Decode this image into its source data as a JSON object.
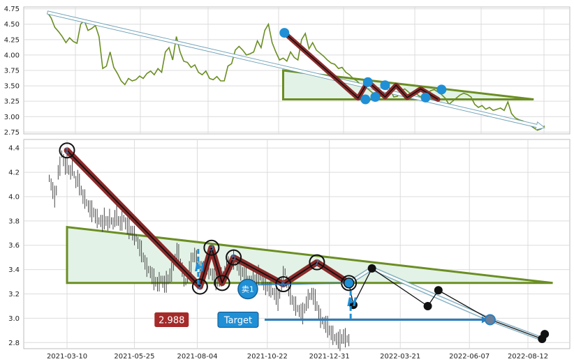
{
  "chart_data": [
    {
      "type": "line",
      "panel": "top",
      "title": "",
      "xlabel": "",
      "ylabel": "",
      "ylim": [
        2.72,
        4.78
      ],
      "y_ticks": [
        "2.75",
        "3.00",
        "3.25",
        "3.50",
        "3.75",
        "4.00",
        "4.25",
        "4.50",
        "4.75"
      ],
      "grid": true,
      "colors": {
        "price": "#6b8e23",
        "pattern": "#8b2a2a",
        "marker": "#1f8fd6",
        "triangle": "#6b8e23",
        "fill": "#e3f2e6",
        "trend": "#6a9fb5"
      },
      "series": [
        {
          "values": [
            [
              0,
              4.69
            ],
            [
              3,
              4.6
            ],
            [
              6,
              4.45
            ],
            [
              9,
              4.38
            ],
            [
              12,
              4.3
            ],
            [
              15,
              4.2
            ],
            [
              18,
              4.28
            ],
            [
              21,
              4.22
            ],
            [
              24,
              4.19
            ],
            [
              27,
              4.5
            ],
            [
              30,
              4.56
            ],
            [
              33,
              4.4
            ],
            [
              36,
              4.43
            ],
            [
              39,
              4.48
            ],
            [
              42,
              4.3
            ],
            [
              45,
              3.78
            ],
            [
              48,
              3.82
            ],
            [
              51,
              4.05
            ],
            [
              54,
              3.8
            ],
            [
              57,
              3.7
            ],
            [
              60,
              3.58
            ],
            [
              63,
              3.52
            ],
            [
              66,
              3.62
            ],
            [
              69,
              3.58
            ],
            [
              72,
              3.6
            ],
            [
              75,
              3.66
            ],
            [
              78,
              3.62
            ],
            [
              81,
              3.7
            ],
            [
              84,
              3.74
            ],
            [
              87,
              3.68
            ],
            [
              90,
              3.78
            ],
            [
              93,
              3.72
            ],
            [
              96,
              4.05
            ],
            [
              99,
              4.12
            ],
            [
              102,
              3.92
            ],
            [
              105,
              4.3
            ],
            [
              108,
              4.05
            ],
            [
              111,
              3.9
            ],
            [
              114,
              3.88
            ],
            [
              117,
              3.8
            ],
            [
              120,
              3.84
            ],
            [
              123,
              3.72
            ],
            [
              126,
              3.68
            ],
            [
              129,
              3.74
            ],
            [
              132,
              3.62
            ],
            [
              135,
              3.6
            ],
            [
              138,
              3.65
            ],
            [
              141,
              3.58
            ],
            [
              144,
              3.58
            ],
            [
              147,
              3.82
            ],
            [
              150,
              3.86
            ],
            [
              153,
              4.08
            ],
            [
              156,
              4.14
            ],
            [
              159,
              4.08
            ],
            [
              162,
              4.0
            ],
            [
              165,
              4.02
            ],
            [
              168,
              4.05
            ],
            [
              171,
              4.23
            ],
            [
              174,
              4.12
            ],
            [
              177,
              4.4
            ],
            [
              180,
              4.5
            ],
            [
              183,
              4.2
            ],
            [
              186,
              4.05
            ],
            [
              189,
              3.92
            ],
            [
              192,
              3.95
            ],
            [
              195,
              3.9
            ],
            [
              198,
              4.05
            ],
            [
              201,
              3.96
            ],
            [
              204,
              3.92
            ],
            [
              207,
              4.25
            ],
            [
              210,
              4.35
            ],
            [
              213,
              4.1
            ],
            [
              216,
              4.2
            ],
            [
              219,
              4.08
            ],
            [
              222,
              4.03
            ],
            [
              225,
              3.98
            ],
            [
              228,
              3.92
            ],
            [
              231,
              3.87
            ],
            [
              234,
              3.85
            ],
            [
              237,
              3.78
            ],
            [
              240,
              3.8
            ],
            [
              243,
              3.72
            ],
            [
              246,
              3.68
            ],
            [
              249,
              3.62
            ],
            [
              252,
              3.58
            ],
            [
              255,
              3.52
            ],
            [
              258,
              3.5
            ],
            [
              261,
              3.45
            ],
            [
              264,
              3.4
            ],
            [
              267,
              3.35
            ],
            [
              270,
              3.3
            ],
            [
              273,
              3.38
            ],
            [
              276,
              3.55
            ],
            [
              279,
              3.45
            ],
            [
              282,
              3.32
            ],
            [
              285,
              3.33
            ],
            [
              288,
              3.42
            ],
            [
              291,
              3.45
            ],
            [
              294,
              3.4
            ],
            [
              297,
              3.35
            ],
            [
              300,
              3.38
            ],
            [
              303,
              3.33
            ],
            [
              306,
              3.32
            ],
            [
              309,
              3.36
            ],
            [
              312,
              3.42
            ],
            [
              315,
              3.44
            ],
            [
              318,
              3.4
            ],
            [
              321,
              3.36
            ],
            [
              324,
              3.3
            ],
            [
              327,
              3.2
            ],
            [
              330,
              3.25
            ],
            [
              333,
              3.3
            ],
            [
              336,
              3.35
            ],
            [
              339,
              3.38
            ],
            [
              342,
              3.36
            ],
            [
              345,
              3.32
            ],
            [
              348,
              3.2
            ],
            [
              351,
              3.15
            ],
            [
              354,
              3.18
            ],
            [
              357,
              3.12
            ],
            [
              360,
              3.15
            ],
            [
              363,
              3.1
            ],
            [
              366,
              3.12
            ],
            [
              369,
              3.14
            ],
            [
              372,
              3.1
            ],
            [
              375,
              3.24
            ],
            [
              378,
              3.05
            ],
            [
              381,
              2.98
            ],
            [
              384,
              2.95
            ],
            [
              387,
              2.93
            ],
            [
              390,
              2.9
            ],
            [
              393,
              2.86
            ],
            [
              396,
              2.82
            ],
            [
              399,
              2.78
            ],
            [
              402,
              2.8
            ],
            [
              405,
              2.85
            ]
          ]
        }
      ],
      "pattern_points": [
        [
          193,
          4.36
        ],
        [
          253,
          3.3
        ],
        [
          261,
          3.57
        ],
        [
          275,
          3.32
        ],
        [
          284,
          3.51
        ],
        [
          293,
          3.31
        ],
        [
          304,
          3.45
        ],
        [
          318,
          3.28
        ]
      ],
      "triangle": {
        "x0": 192,
        "x1": 396,
        "top": 3.75,
        "bottom": 3.28
      },
      "trend_arrow": [
        [
          0,
          4.69
        ],
        [
          405,
          2.82
        ]
      ],
      "marker_points": [
        [
          193,
          4.36
        ],
        [
          261,
          3.56
        ],
        [
          259,
          3.28
        ],
        [
          267,
          3.32
        ],
        [
          275,
          3.51
        ],
        [
          308,
          3.31
        ],
        [
          321,
          3.44
        ]
      ]
    },
    {
      "type": "bar",
      "panel": "bottom",
      "title": "",
      "xlabel": "",
      "ylabel": "",
      "ylim": [
        2.75,
        4.47
      ],
      "y_ticks": [
        "2.8",
        "3.0",
        "3.2",
        "3.4",
        "3.6",
        "3.8",
        "4.0",
        "4.2",
        "4.4"
      ],
      "x_ticks": [
        "2021-03-10",
        "2021-05-25",
        "2021-08-04",
        "2021-10-22",
        "2021-12-31",
        "2022-03-21",
        "2022-06-07",
        "2022-08-12"
      ],
      "x_tick_days": [
        0,
        76,
        147,
        226,
        296,
        376,
        454,
        520
      ],
      "grid": true,
      "colors": {
        "pattern": "#8b2a2a",
        "circle": "#111111",
        "triangle": "#6b8e23",
        "fill": "#e3f2e6",
        "h": "#1f8fd6",
        "target_line": "#2a7fbf",
        "price_badge": "#a52a2a",
        "target_badge": "#1f8fd6",
        "sell": "#1f8fd6",
        "forecast": "#111111",
        "forecast_band": "#6a9fb5"
      },
      "day_range": [
        -22,
        568
      ],
      "price_series": {
        "start_day": -20,
        "step_days": 2,
        "values": [
          4.15,
          4.1,
          4.05,
          4.0,
          4.05,
          4.2,
          4.25,
          4.35,
          4.3,
          4.25,
          4.28,
          4.22,
          4.2,
          4.25,
          4.18,
          4.12,
          4.15,
          4.1,
          4.05,
          4.0,
          3.98,
          3.95,
          3.92,
          3.9,
          3.88,
          3.87,
          3.84,
          3.82,
          3.8,
          3.8,
          3.78,
          3.82,
          3.8,
          3.78,
          3.82,
          3.8,
          3.78,
          3.82,
          3.85,
          3.8,
          3.78,
          3.8,
          3.82,
          3.78,
          3.76,
          3.74,
          3.72,
          3.7,
          3.68,
          3.66,
          3.62,
          3.58,
          3.55,
          3.5,
          3.46,
          3.42,
          3.4,
          3.38,
          3.35,
          3.32,
          3.3,
          3.28,
          3.3,
          3.32,
          3.3,
          3.28,
          3.3,
          3.32,
          3.35,
          3.38,
          3.42,
          3.48,
          3.55,
          3.52,
          3.45,
          3.4,
          3.34,
          3.3,
          3.34,
          3.4,
          3.45,
          3.5,
          3.52,
          3.48,
          3.44,
          3.42,
          3.4,
          3.38,
          3.4,
          3.42,
          3.4,
          3.38,
          3.36,
          3.34,
          3.32,
          3.3,
          3.32,
          3.34,
          3.36,
          3.38,
          3.4,
          3.42,
          3.44,
          3.46,
          3.48,
          3.46,
          3.44,
          3.42,
          3.4,
          3.38,
          3.36,
          3.34,
          3.32,
          3.3,
          3.28,
          3.3,
          3.32,
          3.34,
          3.36,
          3.34,
          3.32,
          3.3,
          3.28,
          3.26,
          3.24,
          3.25,
          3.22,
          3.2,
          3.18,
          3.15,
          3.2,
          3.28,
          3.35,
          3.38,
          3.3,
          3.25,
          3.2,
          3.15,
          3.12,
          3.1,
          3.08,
          3.06,
          3.05,
          3.04,
          3.08,
          3.12,
          3.16,
          3.18,
          3.2,
          3.18,
          3.15,
          3.1,
          3.05,
          3.0,
          2.98,
          2.96,
          2.95,
          2.93,
          2.9,
          2.88,
          2.86,
          2.84,
          2.83,
          2.82,
          2.82,
          2.83,
          2.85,
          2.84,
          2.83,
          2.82
        ]
      },
      "pattern_points": [
        {
          "day": 0,
          "value": 4.38,
          "label": "1"
        },
        {
          "day": 150,
          "value": 3.26,
          "label": "2"
        },
        {
          "day": 163,
          "value": 3.58,
          "label": "3"
        },
        {
          "day": 175,
          "value": 3.29,
          "label": ""
        },
        {
          "day": 188,
          "value": 3.5,
          "label": "5"
        },
        {
          "day": 244,
          "value": 3.28,
          "label": "6"
        },
        {
          "day": 282,
          "value": 3.46,
          "label": "7"
        },
        {
          "day": 318,
          "value": 3.29,
          "label": ""
        }
      ],
      "triangle": {
        "x0": 0,
        "x1": 548,
        "top": 3.75,
        "bottom": 3.29
      },
      "h_marks": [
        {
          "label": "H",
          "day": 148,
          "y_top": 3.57,
          "y_bottom": 3.27
        },
        {
          "label": "H",
          "day": 320,
          "y_top": 3.29,
          "y_bottom": 2.98
        }
      ],
      "sell_marker": {
        "label": "卖1",
        "day": 204,
        "value": 3.24
      },
      "price_badge": {
        "label": "2.988",
        "day": 118,
        "value": 2.988
      },
      "target_badge": {
        "label": "Target",
        "day": 193,
        "value": 2.988,
        "line_end_day": 475
      },
      "forecast_path": [
        [
          318,
          3.29
        ],
        [
          323,
          3.11
        ],
        [
          344,
          3.41
        ],
        [
          407,
          3.1
        ],
        [
          419,
          3.23
        ],
        [
          477,
          2.99
        ],
        [
          536,
          2.83
        ],
        [
          539,
          2.87
        ]
      ],
      "forecast_band": [
        [
          318,
          3.29
        ],
        [
          344,
          3.41
        ],
        [
          477,
          2.99
        ],
        [
          536,
          2.83
        ]
      ],
      "forecast_points": [
        [
          323,
          3.11
        ],
        [
          344,
          3.41
        ],
        [
          407,
          3.1
        ],
        [
          419,
          3.23
        ],
        [
          536,
          2.83
        ],
        [
          539,
          2.87
        ]
      ]
    }
  ]
}
